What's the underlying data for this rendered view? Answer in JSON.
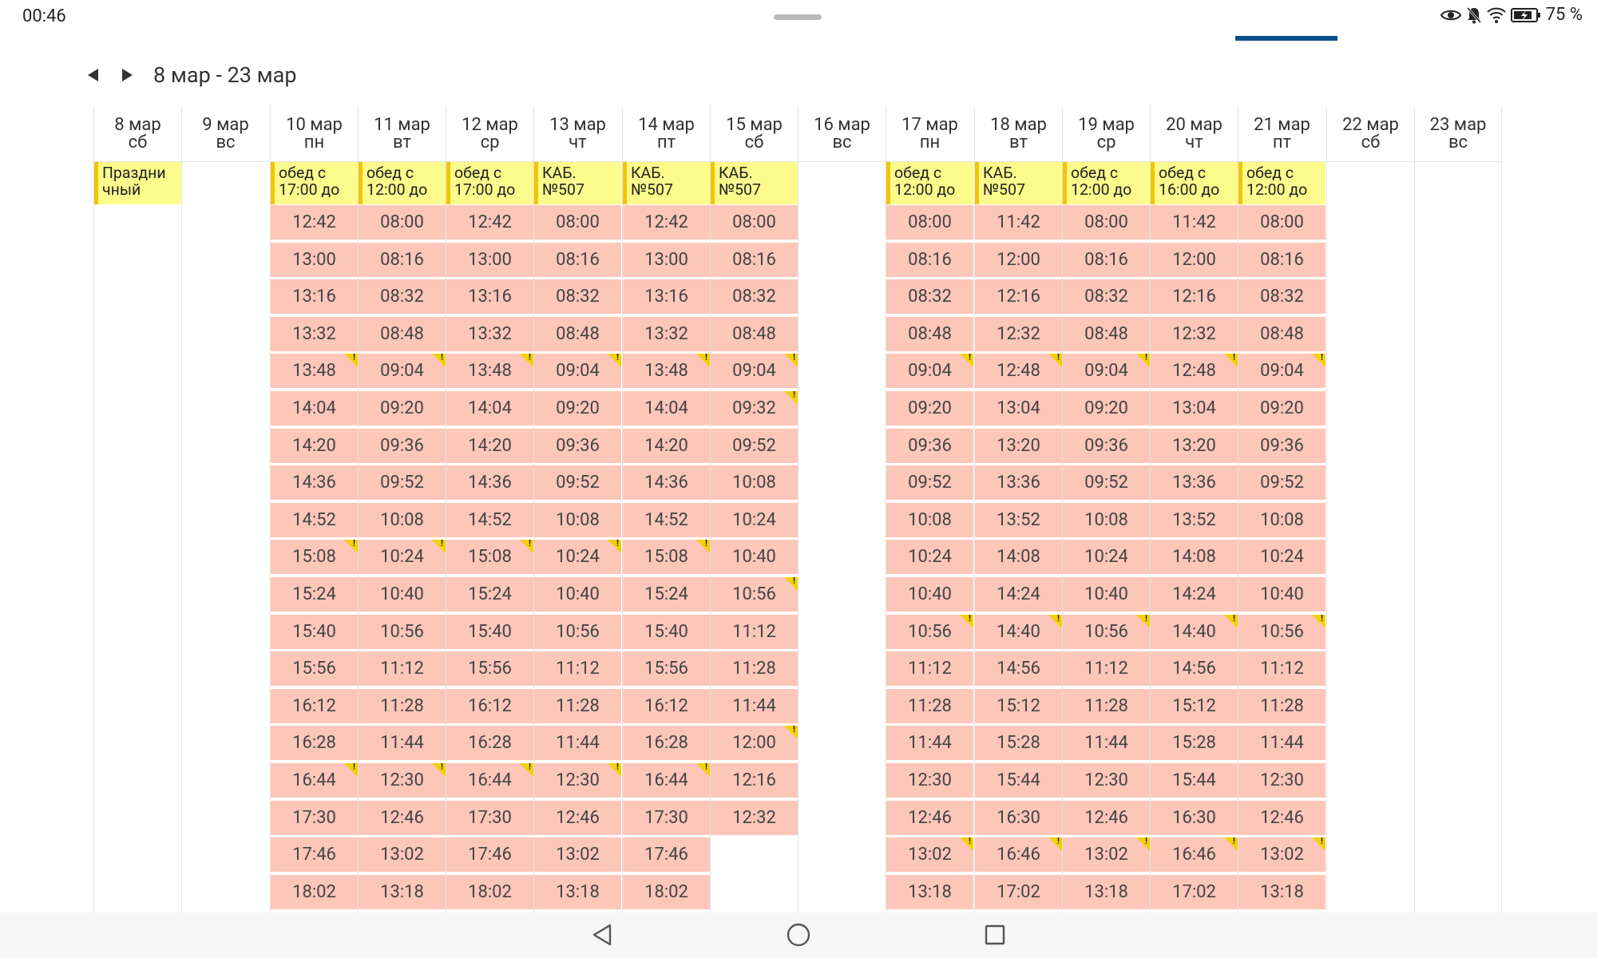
{
  "status": {
    "time": "00:46",
    "battery": "75 %"
  },
  "range": "8 мар - 23 мар",
  "days": [
    {
      "date": "8 мар",
      "weekday": "сб",
      "note": [
        "Праздни",
        "чный"
      ],
      "slots": []
    },
    {
      "date": "9 мар",
      "weekday": "вс",
      "slots": []
    },
    {
      "date": "10 мар",
      "weekday": "пн",
      "note": [
        "обед с",
        "17:00 до"
      ],
      "slots": [
        "12:42",
        "13:00",
        "13:16",
        "13:32",
        "13:48",
        "14:04",
        "14:20",
        "14:36",
        "14:52",
        "15:08",
        "15:24",
        "15:40",
        "15:56",
        "16:12",
        "16:28",
        "16:44",
        "17:30",
        "17:46",
        "18:02"
      ],
      "flags": [
        4,
        9,
        15
      ]
    },
    {
      "date": "11 мар",
      "weekday": "вт",
      "note": [
        "обед с",
        "12:00 до"
      ],
      "slots": [
        "08:00",
        "08:16",
        "08:32",
        "08:48",
        "09:04",
        "09:20",
        "09:36",
        "09:52",
        "10:08",
        "10:24",
        "10:40",
        "10:56",
        "11:12",
        "11:28",
        "11:44",
        "12:30",
        "12:46",
        "13:02",
        "13:18"
      ],
      "flags": [
        4,
        9,
        15
      ]
    },
    {
      "date": "12 мар",
      "weekday": "ср",
      "note": [
        "обед с",
        "17:00 до"
      ],
      "slots": [
        "12:42",
        "13:00",
        "13:16",
        "13:32",
        "13:48",
        "14:04",
        "14:20",
        "14:36",
        "14:52",
        "15:08",
        "15:24",
        "15:40",
        "15:56",
        "16:12",
        "16:28",
        "16:44",
        "17:30",
        "17:46",
        "18:02"
      ],
      "flags": [
        4,
        9,
        15
      ]
    },
    {
      "date": "13 мар",
      "weekday": "чт",
      "note": [
        "КАБ.",
        "№507"
      ],
      "slots": [
        "08:00",
        "08:16",
        "08:32",
        "08:48",
        "09:04",
        "09:20",
        "09:36",
        "09:52",
        "10:08",
        "10:24",
        "10:40",
        "10:56",
        "11:12",
        "11:28",
        "11:44",
        "12:30",
        "12:46",
        "13:02",
        "13:18"
      ],
      "flags": [
        4,
        9,
        15
      ]
    },
    {
      "date": "14 мар",
      "weekday": "пт",
      "note": [
        "КАБ.",
        "№507"
      ],
      "slots": [
        "12:42",
        "13:00",
        "13:16",
        "13:32",
        "13:48",
        "14:04",
        "14:20",
        "14:36",
        "14:52",
        "15:08",
        "15:24",
        "15:40",
        "15:56",
        "16:12",
        "16:28",
        "16:44",
        "17:30",
        "17:46",
        "18:02"
      ],
      "flags": [
        4,
        9,
        15
      ]
    },
    {
      "date": "15 мар",
      "weekday": "сб",
      "note": [
        "КАБ.",
        "№507"
      ],
      "slots": [
        "08:00",
        "08:16",
        "08:32",
        "08:48",
        "09:04",
        "09:32",
        "09:52",
        "10:08",
        "10:24",
        "10:40",
        "10:56",
        "11:12",
        "11:28",
        "11:44",
        "12:00",
        "12:16",
        "12:32"
      ],
      "flags": [
        4,
        5,
        10,
        14
      ]
    },
    {
      "date": "16 мар",
      "weekday": "вс",
      "slots": []
    },
    {
      "date": "17 мар",
      "weekday": "пн",
      "note": [
        "обед с",
        "12:00 до"
      ],
      "slots": [
        "08:00",
        "08:16",
        "08:32",
        "08:48",
        "09:04",
        "09:20",
        "09:36",
        "09:52",
        "10:08",
        "10:24",
        "10:40",
        "10:56",
        "11:12",
        "11:28",
        "11:44",
        "12:30",
        "12:46",
        "13:02",
        "13:18"
      ],
      "flags": [
        4,
        11,
        17
      ]
    },
    {
      "date": "18 мар",
      "weekday": "вт",
      "note": [
        "КАБ.",
        "№507"
      ],
      "slots": [
        "11:42",
        "12:00",
        "12:16",
        "12:32",
        "12:48",
        "13:04",
        "13:20",
        "13:36",
        "13:52",
        "14:08",
        "14:24",
        "14:40",
        "14:56",
        "15:12",
        "15:28",
        "15:44",
        "16:30",
        "16:46",
        "17:02"
      ],
      "flags": [
        4,
        11,
        17
      ]
    },
    {
      "date": "19 мар",
      "weekday": "ср",
      "note": [
        "обед с",
        "12:00 до"
      ],
      "slots": [
        "08:00",
        "08:16",
        "08:32",
        "08:48",
        "09:04",
        "09:20",
        "09:36",
        "09:52",
        "10:08",
        "10:24",
        "10:40",
        "10:56",
        "11:12",
        "11:28",
        "11:44",
        "12:30",
        "12:46",
        "13:02",
        "13:18"
      ],
      "flags": [
        4,
        11,
        17
      ]
    },
    {
      "date": "20 мар",
      "weekday": "чт",
      "note": [
        "обед с",
        "16:00 до"
      ],
      "slots": [
        "11:42",
        "12:00",
        "12:16",
        "12:32",
        "12:48",
        "13:04",
        "13:20",
        "13:36",
        "13:52",
        "14:08",
        "14:24",
        "14:40",
        "14:56",
        "15:12",
        "15:28",
        "15:44",
        "16:30",
        "16:46",
        "17:02"
      ],
      "flags": [
        4,
        11,
        17
      ]
    },
    {
      "date": "21 мар",
      "weekday": "пт",
      "note": [
        "обед с",
        "12:00 до"
      ],
      "slots": [
        "08:00",
        "08:16",
        "08:32",
        "08:48",
        "09:04",
        "09:20",
        "09:36",
        "09:52",
        "10:08",
        "10:24",
        "10:40",
        "10:56",
        "11:12",
        "11:28",
        "11:44",
        "12:30",
        "12:46",
        "13:02",
        "13:18"
      ],
      "flags": [
        4,
        11,
        17
      ]
    },
    {
      "date": "22 мар",
      "weekday": "сб",
      "slots": []
    },
    {
      "date": "23 мар",
      "weekday": "вс",
      "slots": []
    }
  ]
}
